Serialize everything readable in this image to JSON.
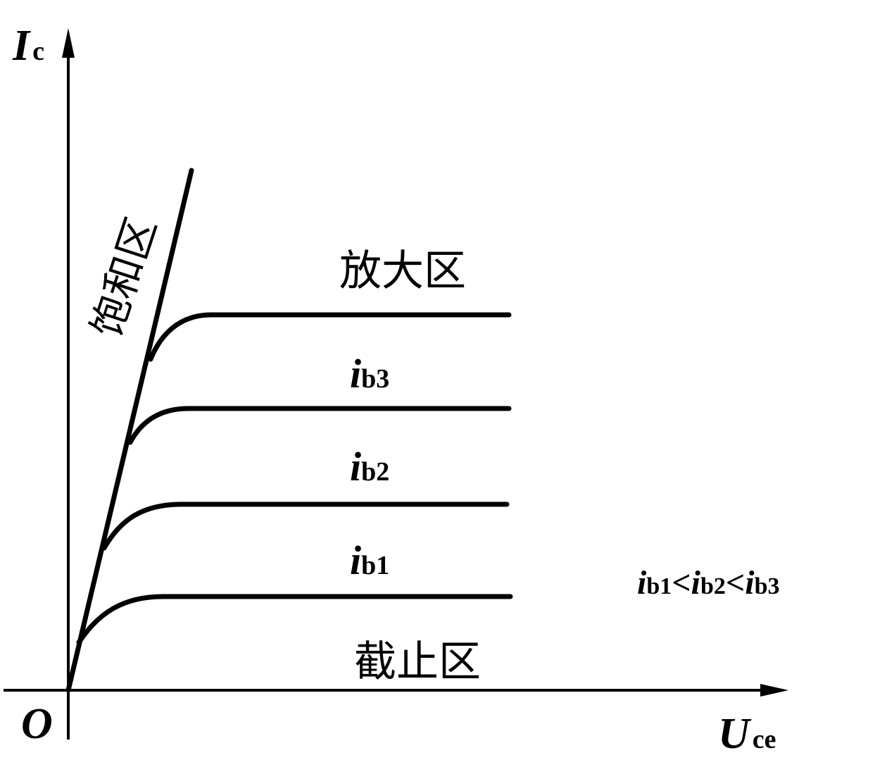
{
  "axes": {
    "y_label": {
      "main": "I",
      "sub": "c"
    },
    "x_label": {
      "main": "U",
      "sub": "ce"
    },
    "origin": "O"
  },
  "regions": {
    "saturation": "饱和区",
    "amplification": "放大区",
    "cutoff": "截止区"
  },
  "curves": [
    {
      "main": "i",
      "sub": "b3"
    },
    {
      "main": "i",
      "sub": "b2"
    },
    {
      "main": "i",
      "sub": "b1"
    }
  ],
  "relation": {
    "terms": [
      {
        "main": "i",
        "sub": "b1"
      },
      {
        "main": "i",
        "sub": "b2"
      },
      {
        "main": "i",
        "sub": "b3"
      }
    ],
    "separator": "<"
  }
}
